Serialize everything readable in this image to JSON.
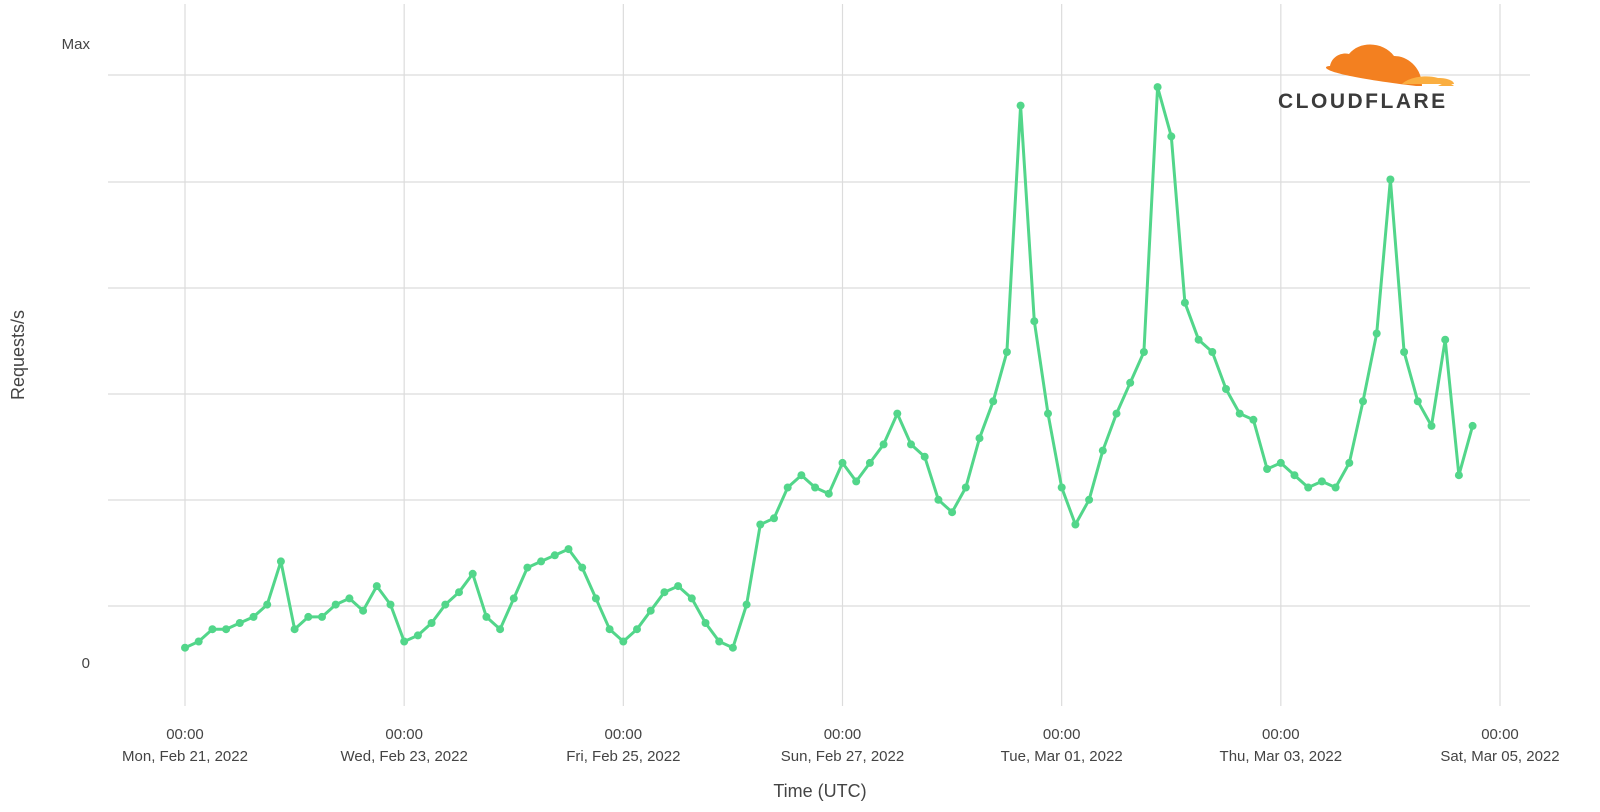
{
  "chart_data": {
    "type": "line",
    "title": "",
    "xlabel": "Time (UTC)",
    "ylabel": "Requests/s",
    "y_tick_labels": [
      "0",
      "Max"
    ],
    "ylim": [
      0,
      1
    ],
    "xlim": [
      "2022-02-20T17:00Z",
      "2022-03-05T03:00Z"
    ],
    "x_ticks": [
      {
        "time": "00:00",
        "date": "Mon, Feb 21, 2022",
        "value": "2022-02-21T00:00Z"
      },
      {
        "time": "00:00",
        "date": "Wed, Feb 23, 2022",
        "value": "2022-02-23T00:00Z"
      },
      {
        "time": "00:00",
        "date": "Fri, Feb 25, 2022",
        "value": "2022-02-25T00:00Z"
      },
      {
        "time": "00:00",
        "date": "Sun, Feb 27, 2022",
        "value": "2022-02-27T00:00Z"
      },
      {
        "time": "00:00",
        "date": "Tue, Mar 01, 2022",
        "value": "2022-03-01T00:00Z"
      },
      {
        "time": "00:00",
        "date": "Thu, Mar 03, 2022",
        "value": "2022-03-03T00:00Z"
      },
      {
        "time": "00:00",
        "date": "Sat, Mar 05, 2022",
        "value": "2022-03-05T00:00Z"
      }
    ],
    "grid": true,
    "series": [
      {
        "color": "#52d68a",
        "x": [
          "2022-02-21T00:00Z",
          "2022-02-21T03:00Z",
          "2022-02-21T06:00Z",
          "2022-02-21T09:00Z",
          "2022-02-21T12:00Z",
          "2022-02-21T15:00Z",
          "2022-02-21T18:00Z",
          "2022-02-21T21:00Z",
          "2022-02-22T00:00Z",
          "2022-02-22T03:00Z",
          "2022-02-22T06:00Z",
          "2022-02-22T09:00Z",
          "2022-02-22T12:00Z",
          "2022-02-22T15:00Z",
          "2022-02-22T18:00Z",
          "2022-02-22T21:00Z",
          "2022-02-23T00:00Z",
          "2022-02-23T03:00Z",
          "2022-02-23T06:00Z",
          "2022-02-23T09:00Z",
          "2022-02-23T12:00Z",
          "2022-02-23T15:00Z",
          "2022-02-23T18:00Z",
          "2022-02-23T21:00Z",
          "2022-02-24T00:00Z",
          "2022-02-24T03:00Z",
          "2022-02-24T06:00Z",
          "2022-02-24T09:00Z",
          "2022-02-24T12:00Z",
          "2022-02-24T15:00Z",
          "2022-02-24T18:00Z",
          "2022-02-24T21:00Z",
          "2022-02-25T00:00Z",
          "2022-02-25T03:00Z",
          "2022-02-25T06:00Z",
          "2022-02-25T09:00Z",
          "2022-02-25T12:00Z",
          "2022-02-25T15:00Z",
          "2022-02-25T18:00Z",
          "2022-02-25T21:00Z",
          "2022-02-26T00:00Z",
          "2022-02-26T03:00Z",
          "2022-02-26T06:00Z",
          "2022-02-26T09:00Z",
          "2022-02-26T12:00Z",
          "2022-02-26T15:00Z",
          "2022-02-26T18:00Z",
          "2022-02-26T21:00Z",
          "2022-02-27T00:00Z",
          "2022-02-27T03:00Z",
          "2022-02-27T06:00Z",
          "2022-02-27T09:00Z",
          "2022-02-27T12:00Z",
          "2022-02-27T15:00Z",
          "2022-02-27T18:00Z",
          "2022-02-27T21:00Z",
          "2022-02-28T00:00Z",
          "2022-02-28T03:00Z",
          "2022-02-28T06:00Z",
          "2022-02-28T09:00Z",
          "2022-02-28T12:00Z",
          "2022-02-28T15:00Z",
          "2022-02-28T18:00Z",
          "2022-02-28T21:00Z",
          "2022-03-01T00:00Z",
          "2022-03-01T03:00Z",
          "2022-03-01T06:00Z",
          "2022-03-01T09:00Z",
          "2022-03-01T12:00Z",
          "2022-03-01T15:00Z",
          "2022-03-01T18:00Z",
          "2022-03-01T21:00Z",
          "2022-03-02T00:00Z",
          "2022-03-02T03:00Z",
          "2022-03-02T06:00Z",
          "2022-03-02T09:00Z",
          "2022-03-02T12:00Z",
          "2022-03-02T15:00Z",
          "2022-03-02T18:00Z",
          "2022-03-02T21:00Z",
          "2022-03-03T00:00Z",
          "2022-03-03T03:00Z",
          "2022-03-03T06:00Z",
          "2022-03-03T09:00Z",
          "2022-03-03T12:00Z",
          "2022-03-03T15:00Z",
          "2022-03-03T18:00Z",
          "2022-03-03T21:00Z",
          "2022-03-04T00:00Z",
          "2022-03-04T03:00Z",
          "2022-03-04T06:00Z",
          "2022-03-04T09:00Z",
          "2022-03-04T12:00Z",
          "2022-03-04T15:00Z",
          "2022-03-04T18:00Z"
        ],
        "y": [
          0.02,
          0.03,
          0.05,
          0.05,
          0.06,
          0.07,
          0.09,
          0.16,
          0.05,
          0.07,
          0.07,
          0.09,
          0.1,
          0.08,
          0.12,
          0.09,
          0.03,
          0.04,
          0.06,
          0.09,
          0.11,
          0.14,
          0.07,
          0.05,
          0.1,
          0.15,
          0.16,
          0.17,
          0.18,
          0.15,
          0.1,
          0.05,
          0.03,
          0.05,
          0.08,
          0.11,
          0.12,
          0.1,
          0.06,
          0.03,
          0.02,
          0.09,
          0.22,
          0.23,
          0.28,
          0.3,
          0.28,
          0.27,
          0.32,
          0.29,
          0.32,
          0.35,
          0.4,
          0.35,
          0.33,
          0.26,
          0.24,
          0.28,
          0.36,
          0.42,
          0.5,
          0.9,
          0.55,
          0.4,
          0.28,
          0.22,
          0.26,
          0.34,
          0.4,
          0.45,
          0.5,
          0.93,
          0.85,
          0.58,
          0.52,
          0.5,
          0.44,
          0.4,
          0.39,
          0.31,
          0.32,
          0.3,
          0.28,
          0.29,
          0.28,
          0.32,
          0.42,
          0.53,
          0.78,
          0.5,
          0.42,
          0.38,
          0.52,
          0.3,
          0.38
        ]
      }
    ]
  },
  "logo": {
    "text": "CLOUDFLARE",
    "colors": {
      "primary": "#f38020",
      "secondary": "#faae40",
      "text": "#3b3b3b"
    }
  }
}
